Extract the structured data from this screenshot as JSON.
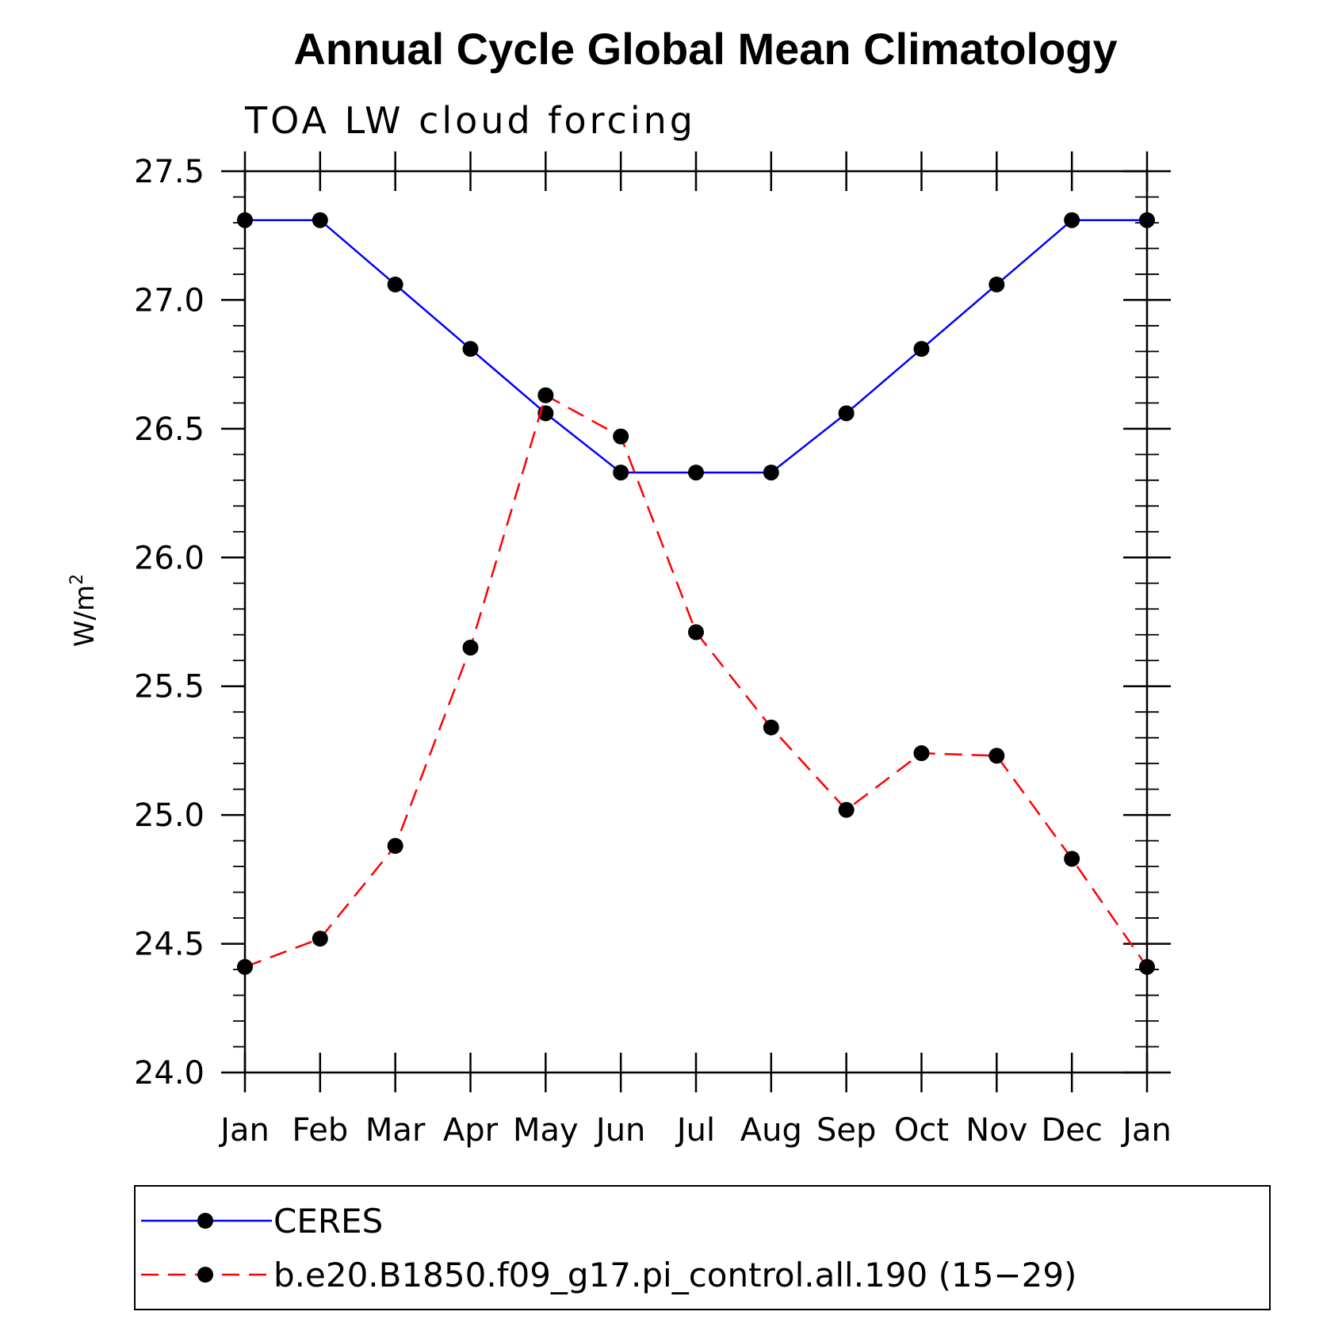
{
  "chart_data": {
    "type": "line",
    "title": "Annual Cycle Global Mean Climatology",
    "subtitle": "TOA LW cloud forcing",
    "ylabel": "W/m",
    "ylabel_superscript": "2",
    "xlabel": "",
    "categories": [
      "Jan",
      "Feb",
      "Mar",
      "Apr",
      "May",
      "Jun",
      "Jul",
      "Aug",
      "Sep",
      "Oct",
      "Nov",
      "Dec",
      "Jan"
    ],
    "ylim": [
      24.0,
      27.5
    ],
    "yticks": [
      "24.0",
      "24.5",
      "25.0",
      "25.5",
      "26.0",
      "26.5",
      "27.0",
      "27.5"
    ],
    "grid": false,
    "legend_position": "bottom",
    "series": [
      {
        "name": "CERES",
        "color": "#0000ff",
        "line_style": "solid",
        "marker": "filled-circle",
        "values": [
          27.31,
          27.31,
          27.06,
          26.81,
          26.56,
          26.33,
          26.33,
          26.33,
          26.56,
          26.81,
          27.06,
          27.31,
          27.31
        ]
      },
      {
        "name": "b.e20.B1850.f09_g17.pi_control.all.190 (15−29)",
        "color": "#ff0000",
        "line_style": "dashed",
        "marker": "filled-circle",
        "values": [
          24.41,
          24.52,
          24.88,
          25.65,
          26.63,
          26.47,
          25.71,
          25.34,
          25.02,
          25.24,
          25.23,
          24.83,
          24.41
        ]
      }
    ]
  }
}
